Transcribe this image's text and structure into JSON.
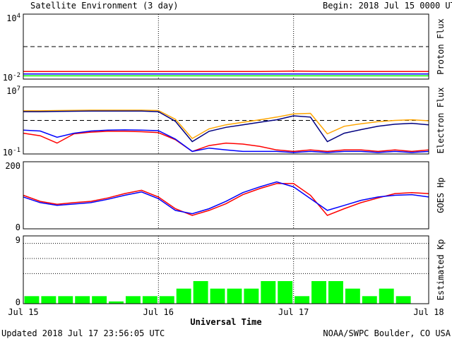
{
  "header": {
    "title": "Satellite Environment (3 day)",
    "begin": "Begin:  2018 Jul 15 0000 UTC"
  },
  "footer": {
    "updated": "Updated 2018 Jul 17 23:56:05 UTC",
    "source": "NOAA/SWPC Boulder, CO USA",
    "xlabel": "Universal Time"
  },
  "x_ticks": [
    "Jul 15",
    "Jul 16",
    "Jul 17",
    "Jul 18"
  ],
  "colors": {
    "red": "#ff0000",
    "blue": "#0000ff",
    "green": "#00ff00",
    "orange": "#ffa500",
    "navy": "#000080"
  },
  "chart_data": [
    {
      "type": "line",
      "ylabel": "Proton Flux",
      "yscale": "log",
      "ylim": [
        0.01,
        10000
      ],
      "y_tick_labels": [
        "10^4",
        "10^-2"
      ],
      "threshold": 10,
      "x_days": [
        0,
        0.25,
        0.5,
        0.75,
        1,
        1.25,
        1.5,
        1.75,
        2,
        2.25,
        2.5,
        2.75,
        3
      ],
      "series": [
        {
          "color": "red",
          "values": [
            0.05,
            0.05,
            0.05,
            0.05,
            0.05,
            0.05,
            0.05,
            0.05,
            0.055,
            0.05,
            0.05,
            0.05,
            0.05
          ]
        },
        {
          "color": "blue",
          "values": [
            0.03,
            0.03,
            0.03,
            0.03,
            0.03,
            0.03,
            0.03,
            0.03,
            0.03,
            0.03,
            0.03,
            0.03,
            0.03
          ]
        },
        {
          "color": "green",
          "values": [
            0.02,
            0.02,
            0.02,
            0.02,
            0.02,
            0.02,
            0.02,
            0.02,
            0.02,
            0.02,
            0.02,
            0.02,
            0.02
          ]
        }
      ]
    },
    {
      "type": "line",
      "ylabel": "Electron Flux",
      "yscale": "log",
      "ylim": [
        0.1,
        10000000
      ],
      "y_tick_labels": [
        "10^7",
        "10^-1"
      ],
      "threshold": 1000,
      "x_days": [
        0,
        0.125,
        0.25,
        0.375,
        0.5,
        0.625,
        0.75,
        0.875,
        1,
        1.125,
        1.25,
        1.375,
        1.5,
        1.625,
        1.75,
        1.875,
        2,
        2.125,
        2.25,
        2.375,
        2.5,
        2.625,
        2.75,
        2.875,
        3
      ],
      "series": [
        {
          "color": "orange",
          "values": [
            14000,
            14000,
            15000,
            16000,
            16500,
            16500,
            16500,
            16500,
            15000,
            1400,
            7,
            100,
            300,
            600,
            1200,
            2500,
            6000,
            7000,
            25,
            200,
            400,
            700,
            1000,
            1200,
            900
          ]
        },
        {
          "color": "navy",
          "values": [
            11000,
            11000,
            12000,
            12500,
            13000,
            13000,
            13000,
            13000,
            11000,
            800,
            3,
            50,
            150,
            300,
            600,
            1200,
            3500,
            2500,
            3,
            30,
            80,
            200,
            350,
            450,
            300
          ]
        },
        {
          "color": "red",
          "values": [
            30,
            15,
            2,
            25,
            40,
            50,
            50,
            45,
            35,
            5,
            0.2,
            1,
            2,
            1.5,
            0.8,
            0.3,
            0.2,
            0.3,
            0.2,
            0.3,
            0.3,
            0.2,
            0.3,
            0.2,
            0.3
          ]
        },
        {
          "color": "blue",
          "values": [
            70,
            55,
            10,
            30,
            55,
            70,
            75,
            70,
            60,
            6,
            0.2,
            0.5,
            0.3,
            0.2,
            0.2,
            0.2,
            0.15,
            0.2,
            0.15,
            0.2,
            0.2,
            0.15,
            0.2,
            0.15,
            0.2
          ]
        }
      ]
    },
    {
      "type": "line",
      "ylabel": "GOES Hp",
      "ylim": [
        0,
        200
      ],
      "y_tick_labels": [
        "200",
        "0"
      ],
      "x_days": [
        0,
        0.125,
        0.25,
        0.375,
        0.5,
        0.625,
        0.75,
        0.875,
        1,
        1.125,
        1.25,
        1.375,
        1.5,
        1.625,
        1.75,
        1.875,
        2,
        2.125,
        2.25,
        2.375,
        2.5,
        2.625,
        2.75,
        2.875,
        3
      ],
      "series": [
        {
          "color": "red",
          "values": [
            100,
            82,
            73,
            78,
            82,
            92,
            105,
            115,
            95,
            60,
            40,
            55,
            75,
            102,
            120,
            135,
            135,
            100,
            40,
            60,
            78,
            92,
            105,
            108,
            105
          ]
        },
        {
          "color": "blue",
          "values": [
            95,
            78,
            70,
            74,
            78,
            88,
            100,
            110,
            90,
            55,
            45,
            60,
            82,
            108,
            125,
            140,
            125,
            90,
            55,
            70,
            85,
            95,
            100,
            102,
            95
          ]
        }
      ]
    },
    {
      "type": "bar",
      "ylabel": "Estimated Kp",
      "ylim": [
        0,
        9
      ],
      "y_tick_labels": [
        "9",
        "0"
      ],
      "grid_levels": [
        4,
        6,
        8
      ],
      "categories": [
        "Jul 15 00",
        "Jul 15 03",
        "Jul 15 06",
        "Jul 15 09",
        "Jul 15 12",
        "Jul 15 15",
        "Jul 15 18",
        "Jul 15 21",
        "Jul 16 00",
        "Jul 16 03",
        "Jul 16 06",
        "Jul 16 09",
        "Jul 16 12",
        "Jul 16 15",
        "Jul 16 18",
        "Jul 16 21",
        "Jul 17 00",
        "Jul 17 03",
        "Jul 17 06",
        "Jul 17 09",
        "Jul 17 12",
        "Jul 17 15",
        "Jul 17 18",
        "Jul 17 21"
      ],
      "values": [
        1,
        1,
        1,
        1,
        1,
        0.3,
        1,
        1,
        1,
        2,
        3,
        2,
        2,
        2,
        3,
        3,
        1,
        3,
        3,
        2,
        1,
        2,
        1,
        0
      ]
    }
  ]
}
